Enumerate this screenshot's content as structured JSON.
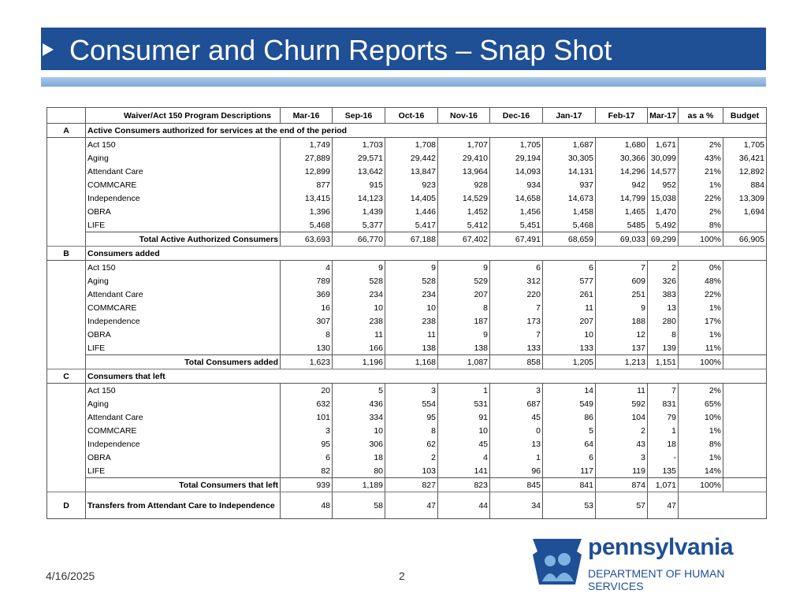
{
  "slide": {
    "title": "Consumer and Churn Reports – Snap Shot",
    "date": "4/16/2025",
    "page": "2"
  },
  "logo": {
    "word": "pennsylvania",
    "sub": "DEPARTMENT OF HUMAN SERVICES",
    "color": "#1f4f95"
  },
  "table": {
    "header": {
      "desc": "Waiver/Act 150 Program Descriptions",
      "months": [
        "Mar-16",
        "Sep-16",
        "Oct-16",
        "Nov-16",
        "Dec-16",
        "Jan-17",
        "Feb-17",
        "Mar-17"
      ],
      "pct": "as a %",
      "budget": "Budget"
    },
    "sections": [
      {
        "letter": "A",
        "title": "Active Consumers authorized for services at the end of the period",
        "rows": [
          {
            "label": "Act 150",
            "values": [
              "1,749",
              "1,703",
              "1,708",
              "1,707",
              "1,705",
              "1,687",
              "1,680",
              "1,671"
            ],
            "pct": "2%",
            "budget": "1,705"
          },
          {
            "label": "Aging",
            "values": [
              "27,889",
              "29,571",
              "29,442",
              "29,410",
              "29,194",
              "30,305",
              "30,366",
              "30,099"
            ],
            "pct": "43%",
            "budget": "36,421"
          },
          {
            "label": "Attendant Care",
            "values": [
              "12,899",
              "13,642",
              "13,847",
              "13,964",
              "14,093",
              "14,131",
              "14,296",
              "14,577"
            ],
            "pct": "21%",
            "budget": "12,892"
          },
          {
            "label": "COMMCARE",
            "values": [
              "877",
              "915",
              "923",
              "928",
              "934",
              "937",
              "942",
              "952"
            ],
            "pct": "1%",
            "budget": "884"
          },
          {
            "label": "Independence",
            "values": [
              "13,415",
              "14,123",
              "14,405",
              "14,529",
              "14,658",
              "14,673",
              "14,799",
              "15,038"
            ],
            "pct": "22%",
            "budget": "13,309"
          },
          {
            "label": "OBRA",
            "values": [
              "1,396",
              "1,439",
              "1,446",
              "1,452",
              "1,456",
              "1,458",
              "1,465",
              "1,470"
            ],
            "pct": "2%",
            "budget": "1,694"
          },
          {
            "label": "LIFE",
            "values": [
              "5,468",
              "5,377",
              "5,417",
              "5,412",
              "5,451",
              "5,468",
              "5485",
              "5,492"
            ],
            "pct": "8%",
            "budget": ""
          }
        ],
        "total": {
          "label": "Total Active Authorized Consumers",
          "values": [
            "63,693",
            "66,770",
            "67,188",
            "67,402",
            "67,491",
            "68,659",
            "69,033",
            "69,299"
          ],
          "pct": "100%",
          "budget": "66,905"
        }
      },
      {
        "letter": "B",
        "title": "Consumers added",
        "rows": [
          {
            "label": "Act 150",
            "values": [
              "4",
              "9",
              "9",
              "9",
              "6",
              "6",
              "7",
              "2"
            ],
            "pct": "0%",
            "budget": ""
          },
          {
            "label": "Aging",
            "values": [
              "789",
              "528",
              "528",
              "529",
              "312",
              "577",
              "609",
              "326"
            ],
            "pct": "48%",
            "budget": ""
          },
          {
            "label": "Attendant Care",
            "values": [
              "369",
              "234",
              "234",
              "207",
              "220",
              "261",
              "251",
              "383"
            ],
            "pct": "22%",
            "budget": ""
          },
          {
            "label": "COMMCARE",
            "values": [
              "16",
              "10",
              "10",
              "8",
              "7",
              "11",
              "9",
              "13"
            ],
            "pct": "1%",
            "budget": ""
          },
          {
            "label": "Independence",
            "values": [
              "307",
              "238",
              "238",
              "187",
              "173",
              "207",
              "188",
              "280"
            ],
            "pct": "17%",
            "budget": ""
          },
          {
            "label": "OBRA",
            "values": [
              "8",
              "11",
              "11",
              "9",
              "7",
              "10",
              "12",
              "8"
            ],
            "pct": "1%",
            "budget": ""
          },
          {
            "label": "LIFE",
            "values": [
              "130",
              "166",
              "138",
              "138",
              "133",
              "133",
              "137",
              "139"
            ],
            "pct": "11%",
            "budget": ""
          }
        ],
        "total": {
          "label": "Total Consumers added",
          "values": [
            "1,623",
            "1,196",
            "1,168",
            "1,087",
            "858",
            "1,205",
            "1,213",
            "1,151"
          ],
          "pct": "100%",
          "budget": ""
        }
      },
      {
        "letter": "C",
        "title": "Consumers that left",
        "rows": [
          {
            "label": "Act 150",
            "values": [
              "20",
              "5",
              "3",
              "1",
              "3",
              "14",
              "11",
              "7"
            ],
            "pct": "2%",
            "budget": ""
          },
          {
            "label": "Aging",
            "values": [
              "632",
              "436",
              "554",
              "531",
              "687",
              "549",
              "592",
              "831"
            ],
            "pct": "65%",
            "budget": ""
          },
          {
            "label": "Attendant Care",
            "values": [
              "101",
              "334",
              "95",
              "91",
              "45",
              "86",
              "104",
              "79"
            ],
            "pct": "10%",
            "budget": ""
          },
          {
            "label": "COMMCARE",
            "values": [
              "3",
              "10",
              "8",
              "10",
              "0",
              "5",
              "2",
              "1"
            ],
            "pct": "1%",
            "budget": ""
          },
          {
            "label": "Independence",
            "values": [
              "95",
              "306",
              "62",
              "45",
              "13",
              "64",
              "43",
              "18"
            ],
            "pct": "8%",
            "budget": ""
          },
          {
            "label": "OBRA",
            "values": [
              "6",
              "18",
              "2",
              "4",
              "1",
              "6",
              "3",
              "-"
            ],
            "pct": "1%",
            "budget": ""
          },
          {
            "label": "LIFE",
            "values": [
              "82",
              "80",
              "103",
              "141",
              "96",
              "117",
              "119",
              "135"
            ],
            "pct": "14%",
            "budget": ""
          }
        ],
        "total": {
          "label": "Total Consumers that left",
          "values": [
            "939",
            "1,189",
            "827",
            "823",
            "845",
            "841",
            "874",
            "1,071"
          ],
          "pct": "100%",
          "budget": ""
        }
      }
    ],
    "transfers": {
      "letter": "D",
      "label": "Transfers from Attendant Care to Independence",
      "values": [
        "48",
        "58",
        "47",
        "44",
        "34",
        "53",
        "57",
        "47"
      ]
    }
  }
}
